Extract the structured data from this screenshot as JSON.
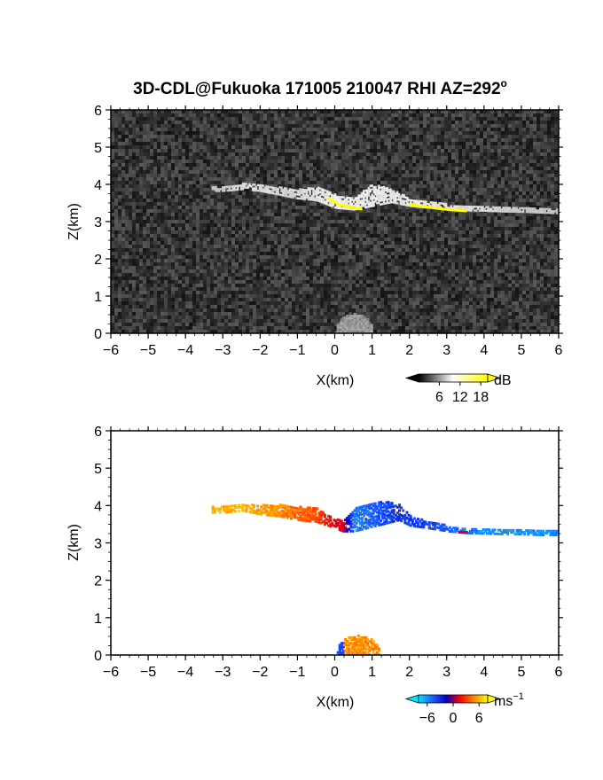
{
  "title": "3D-CDL@Fukuoka 171005 210047 RHI AZ=292",
  "title_superscript": "o",
  "chart_data": [
    {
      "type": "heatmap",
      "name": "signal-intensity",
      "xlabel": "X(km)",
      "ylabel": "Z(km)",
      "xlim": [
        -6,
        6
      ],
      "ylim": [
        0,
        6
      ],
      "x_ticks": [
        -6,
        -5,
        -4,
        -3,
        -2,
        -1,
        0,
        1,
        2,
        3,
        4,
        5,
        6
      ],
      "y_ticks": [
        0,
        1,
        2,
        3,
        4,
        5,
        6
      ],
      "background": "noise-gray",
      "layer": [
        {
          "x": -3.3,
          "z_top": 3.95,
          "z_bot": 3.8,
          "intensity": 9
        },
        {
          "x": -3.0,
          "z_top": 3.9,
          "z_bot": 3.8,
          "intensity": 10
        },
        {
          "x": -2.5,
          "z_top": 4.0,
          "z_bot": 3.85,
          "intensity": 13
        },
        {
          "x": -2.0,
          "z_top": 3.95,
          "z_bot": 3.8,
          "intensity": 13
        },
        {
          "x": -1.5,
          "z_top": 3.9,
          "z_bot": 3.7,
          "intensity": 12
        },
        {
          "x": -1.0,
          "z_top": 3.85,
          "z_bot": 3.6,
          "intensity": 12
        },
        {
          "x": -0.5,
          "z_top": 3.9,
          "z_bot": 3.55,
          "intensity": 14
        },
        {
          "x": 0.0,
          "z_top": 3.7,
          "z_bot": 3.35,
          "intensity": 16
        },
        {
          "x": 0.5,
          "z_top": 3.6,
          "z_bot": 3.3,
          "intensity": 15
        },
        {
          "x": 1.0,
          "z_top": 4.0,
          "z_bot": 3.4,
          "intensity": 15
        },
        {
          "x": 1.5,
          "z_top": 3.85,
          "z_bot": 3.5,
          "intensity": 14
        },
        {
          "x": 2.0,
          "z_top": 3.6,
          "z_bot": 3.4,
          "intensity": 15
        },
        {
          "x": 2.5,
          "z_top": 3.5,
          "z_bot": 3.35,
          "intensity": 15
        },
        {
          "x": 3.0,
          "z_top": 3.45,
          "z_bot": 3.3,
          "intensity": 14
        },
        {
          "x": 3.5,
          "z_top": 3.4,
          "z_bot": 3.28,
          "intensity": 13
        },
        {
          "x": 4.0,
          "z_top": 3.38,
          "z_bot": 3.27,
          "intensity": 12
        },
        {
          "x": 4.5,
          "z_top": 3.36,
          "z_bot": 3.25,
          "intensity": 11
        },
        {
          "x": 5.0,
          "z_top": 3.35,
          "z_bot": 3.24,
          "intensity": 10
        },
        {
          "x": 5.5,
          "z_top": 3.33,
          "z_bot": 3.22,
          "intensity": 10
        },
        {
          "x": 6.0,
          "z_top": 3.3,
          "z_bot": 3.2,
          "intensity": 9
        }
      ],
      "strong_base": [
        {
          "x": -0.2,
          "z": 3.62
        },
        {
          "x": 0.1,
          "z": 3.45
        },
        {
          "x": 0.4,
          "z": 3.38
        },
        {
          "x": 0.7,
          "z": 3.33
        },
        {
          "x": 2.0,
          "z": 3.45
        },
        {
          "x": 2.5,
          "z": 3.38
        },
        {
          "x": 3.0,
          "z": 3.32
        },
        {
          "x": 3.5,
          "z": 3.28
        }
      ],
      "near_ground": {
        "x_range": [
          0.0,
          1.0
        ],
        "z_top": 0.5,
        "intensity": 10
      },
      "colorbar": {
        "label": "dB",
        "ticks": [
          6,
          12,
          18
        ],
        "range": [
          0,
          20
        ],
        "colors": [
          "#000000",
          "#ffffff",
          "#ffff00"
        ]
      }
    },
    {
      "type": "heatmap",
      "name": "velocity",
      "xlabel": "X(km)",
      "ylabel": "Z(km)",
      "xlim": [
        -6,
        6
      ],
      "ylim": [
        0,
        6
      ],
      "x_ticks": [
        -6,
        -5,
        -4,
        -3,
        -2,
        -1,
        0,
        1,
        2,
        3,
        4,
        5,
        6
      ],
      "y_ticks": [
        0,
        1,
        2,
        3,
        4,
        5,
        6
      ],
      "layer": [
        {
          "x": -3.3,
          "z_top": 3.95,
          "z_bot": 3.8,
          "velocity": 6
        },
        {
          "x": -3.0,
          "z_top": 3.95,
          "z_bot": 3.8,
          "velocity": 6
        },
        {
          "x": -2.5,
          "z_top": 4.0,
          "z_bot": 3.85,
          "velocity": 6
        },
        {
          "x": -2.0,
          "z_top": 4.0,
          "z_bot": 3.75,
          "velocity": 5.5
        },
        {
          "x": -1.5,
          "z_top": 4.0,
          "z_bot": 3.7,
          "velocity": 5
        },
        {
          "x": -1.0,
          "z_top": 3.95,
          "z_bot": 3.6,
          "velocity": 4
        },
        {
          "x": -0.5,
          "z_top": 3.9,
          "z_bot": 3.55,
          "velocity": 3.5
        },
        {
          "x": -0.2,
          "z_top": 3.7,
          "z_bot": 3.45,
          "velocity": 2
        },
        {
          "x": 0.2,
          "z_top": 3.6,
          "z_bot": 3.3,
          "velocity": 1
        },
        {
          "x": 0.5,
          "z_top": 3.9,
          "z_bot": 3.3,
          "velocity": -5.5
        },
        {
          "x": 0.9,
          "z_top": 4.0,
          "z_bot": 3.4,
          "velocity": -5
        },
        {
          "x": 1.3,
          "z_top": 4.1,
          "z_bot": 3.5,
          "velocity": -4
        },
        {
          "x": 1.7,
          "z_top": 4.0,
          "z_bot": 3.6,
          "velocity": -3.5
        },
        {
          "x": 2.0,
          "z_top": 3.7,
          "z_bot": 3.45,
          "velocity": -3.5
        },
        {
          "x": 2.5,
          "z_top": 3.55,
          "z_bot": 3.38,
          "velocity": -4
        },
        {
          "x": 3.0,
          "z_top": 3.45,
          "z_bot": 3.3,
          "velocity": -4.5
        },
        {
          "x": 3.5,
          "z_top": 3.38,
          "z_bot": 3.25,
          "velocity": -5.5
        },
        {
          "x": 4.0,
          "z_top": 3.35,
          "z_bot": 3.24,
          "velocity": -6
        },
        {
          "x": 4.5,
          "z_top": 3.35,
          "z_bot": 3.22,
          "velocity": -6
        },
        {
          "x": 5.0,
          "z_top": 3.34,
          "z_bot": 3.22,
          "velocity": -6
        },
        {
          "x": 5.5,
          "z_top": 3.32,
          "z_bot": 3.2,
          "velocity": -6
        },
        {
          "x": 6.0,
          "z_top": 3.3,
          "z_bot": 3.2,
          "velocity": -5.5
        }
      ],
      "red_patches": [
        {
          "x": 3.4,
          "z": 3.27,
          "velocity": 1
        }
      ],
      "near_ground": {
        "x_range": [
          0.0,
          1.2
        ],
        "z_top": 0.5,
        "velocity": 5,
        "edge_velocity": -4
      },
      "colorbar": {
        "label": "ms",
        "label_superscript": "−1",
        "ticks": [
          -6,
          0,
          6
        ],
        "tick_labels": [
          "−6",
          "0",
          "6"
        ],
        "range": [
          -8,
          8
        ],
        "colors": [
          "#00e5ff",
          "#2060ff",
          "#0000c0",
          "#ff0000",
          "#ff8800",
          "#ffff00"
        ]
      }
    }
  ]
}
